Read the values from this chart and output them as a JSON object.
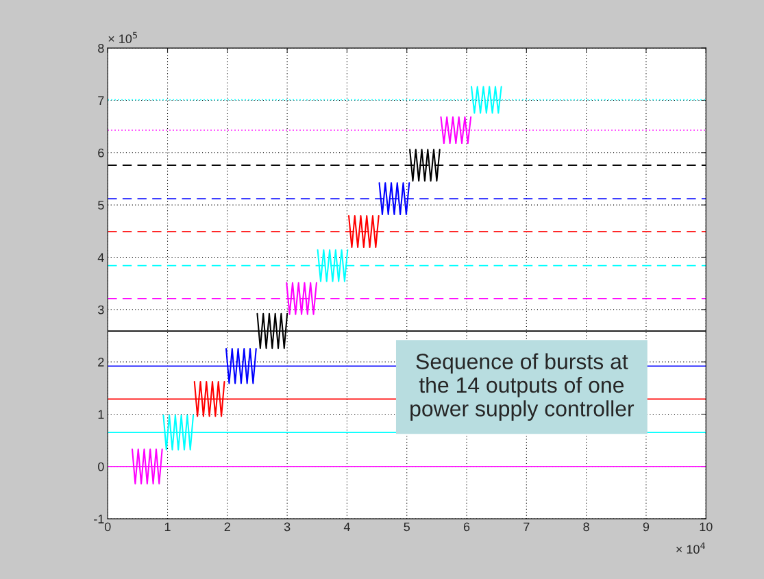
{
  "chart_data": {
    "type": "line",
    "xlim": [
      0,
      10
    ],
    "ylim": [
      -1,
      8
    ],
    "xticks": [
      0,
      1,
      2,
      3,
      4,
      5,
      6,
      7,
      8,
      9,
      10
    ],
    "yticks": [
      -1,
      0,
      1,
      2,
      3,
      4,
      5,
      6,
      7,
      8
    ],
    "grid": true,
    "legend": false,
    "line_style": "solid",
    "marker": "none",
    "annotations": [
      "× 10$^{5}$",
      "× 10$^{4}$",
      "Sequence of bursts at the 14 outputs of one power supply controller"
    ],
    "series": [
      {
        "color": "#ff00ff",
        "x": [
          0.41,
          0.46,
          0.51,
          0.56,
          0.61,
          0.66,
          0.71,
          0.76,
          0.81,
          0.86,
          0.91
        ],
        "values": [
          0.33,
          -0.33,
          0.33,
          -0.33,
          0.33,
          -0.33,
          0.33,
          -0.33,
          0.33,
          -0.33,
          0.33
        ]
      },
      {
        "color": "#00ffff",
        "x": [
          0.93,
          0.98,
          1.03,
          1.08,
          1.13,
          1.18,
          1.23,
          1.28,
          1.33,
          1.38,
          1.43
        ],
        "values": [
          0.98,
          0.32,
          0.98,
          0.32,
          0.98,
          0.32,
          0.98,
          0.32,
          0.98,
          0.32,
          0.98
        ]
      },
      {
        "color": "#ff0000",
        "x": [
          1.45,
          1.5,
          1.55,
          1.6,
          1.65,
          1.7,
          1.75,
          1.8,
          1.85,
          1.9,
          1.95
        ],
        "values": [
          1.62,
          0.96,
          1.62,
          0.96,
          1.62,
          0.96,
          1.62,
          0.96,
          1.62,
          0.96,
          1.62
        ]
      },
      {
        "color": "#0000ff",
        "x": [
          1.98,
          2.03,
          2.08,
          2.13,
          2.18,
          2.23,
          2.28,
          2.33,
          2.38,
          2.43,
          2.48
        ],
        "values": [
          2.25,
          1.59,
          2.25,
          1.59,
          2.25,
          1.59,
          2.25,
          1.59,
          2.25,
          1.59,
          2.25
        ]
      },
      {
        "color": "#000000",
        "x": [
          2.5,
          2.55,
          2.6,
          2.65,
          2.7,
          2.75,
          2.8,
          2.85,
          2.9,
          2.95,
          3.0
        ],
        "values": [
          2.92,
          2.26,
          2.92,
          2.26,
          2.92,
          2.26,
          2.92,
          2.26,
          2.92,
          2.26,
          2.92
        ]
      },
      {
        "color": "#ff00ff",
        "x": [
          2.99,
          3.04,
          3.09,
          3.14,
          3.19,
          3.24,
          3.29,
          3.34,
          3.39,
          3.44,
          3.49
        ],
        "values": [
          3.51,
          2.91,
          3.51,
          2.91,
          3.51,
          2.91,
          3.51,
          2.91,
          3.51,
          2.91,
          3.51
        ]
      },
      {
        "color": "#00ffff",
        "x": [
          3.51,
          3.56,
          3.61,
          3.66,
          3.71,
          3.76,
          3.81,
          3.86,
          3.91,
          3.96,
          4.01
        ],
        "values": [
          4.14,
          3.54,
          4.14,
          3.54,
          4.14,
          3.54,
          4.14,
          3.54,
          4.14,
          3.54,
          4.14
        ]
      },
      {
        "color": "#ff0000",
        "x": [
          4.03,
          4.08,
          4.13,
          4.18,
          4.23,
          4.28,
          4.33,
          4.38,
          4.43,
          4.48,
          4.53
        ],
        "values": [
          4.79,
          4.19,
          4.79,
          4.19,
          4.79,
          4.19,
          4.79,
          4.19,
          4.79,
          4.19,
          4.79
        ]
      },
      {
        "color": "#0000ff",
        "x": [
          4.54,
          4.59,
          4.64,
          4.69,
          4.74,
          4.79,
          4.84,
          4.89,
          4.94,
          4.99,
          5.04
        ],
        "values": [
          5.42,
          4.82,
          5.42,
          4.82,
          5.42,
          4.82,
          5.42,
          4.82,
          5.42,
          4.82,
          5.42
        ]
      },
      {
        "color": "#000000",
        "x": [
          5.05,
          5.1,
          5.15,
          5.2,
          5.25,
          5.3,
          5.35,
          5.4,
          5.45,
          5.5,
          5.55
        ],
        "values": [
          6.06,
          5.46,
          6.06,
          5.46,
          6.06,
          5.46,
          6.06,
          5.46,
          6.06,
          5.46,
          6.06
        ]
      },
      {
        "color": "#ff00ff",
        "x": [
          5.57,
          5.62,
          5.67,
          5.72,
          5.77,
          5.82,
          5.87,
          5.92,
          5.97,
          6.02,
          6.07
        ],
        "values": [
          6.68,
          6.18,
          6.68,
          6.18,
          6.68,
          6.18,
          6.68,
          6.18,
          6.68,
          6.18,
          6.68
        ]
      },
      {
        "color": "#00ffff",
        "x": [
          6.08,
          6.13,
          6.18,
          6.23,
          6.28,
          6.33,
          6.38,
          6.43,
          6.48,
          6.53,
          6.58
        ],
        "values": [
          7.26,
          6.76,
          7.26,
          6.76,
          7.26,
          6.76,
          7.26,
          6.76,
          7.26,
          6.76,
          7.26
        ]
      }
    ],
    "ref_lines": [
      {
        "axis": "y",
        "value": 0,
        "color": "#ff00ff",
        "line_style": "solid"
      },
      {
        "axis": "y",
        "value": 0.65,
        "color": "#00ffff",
        "line_style": "solid"
      },
      {
        "axis": "y",
        "value": 1.29,
        "color": "#ff0000",
        "line_style": "solid"
      },
      {
        "axis": "y",
        "value": 1.92,
        "color": "#0000ff",
        "line_style": "solid"
      },
      {
        "axis": "y",
        "value": 2.59,
        "color": "#000000",
        "line_style": "solid"
      },
      {
        "axis": "y",
        "value": 3.21,
        "color": "#ff00ff",
        "line_style": "dashed"
      },
      {
        "axis": "y",
        "value": 3.84,
        "color": "#00ffff",
        "line_style": "dashed"
      },
      {
        "axis": "y",
        "value": 4.49,
        "color": "#ff0000",
        "line_style": "dashed"
      },
      {
        "axis": "y",
        "value": 5.12,
        "color": "#0000ff",
        "line_style": "dashed"
      },
      {
        "axis": "y",
        "value": 5.76,
        "color": "#000000",
        "line_style": "dashed"
      },
      {
        "axis": "y",
        "value": 6.43,
        "color": "#ff00ff",
        "line_style": "dotted"
      },
      {
        "axis": "y",
        "value": 7.01,
        "color": "#00ffff",
        "line_style": "dotted"
      }
    ]
  }
}
